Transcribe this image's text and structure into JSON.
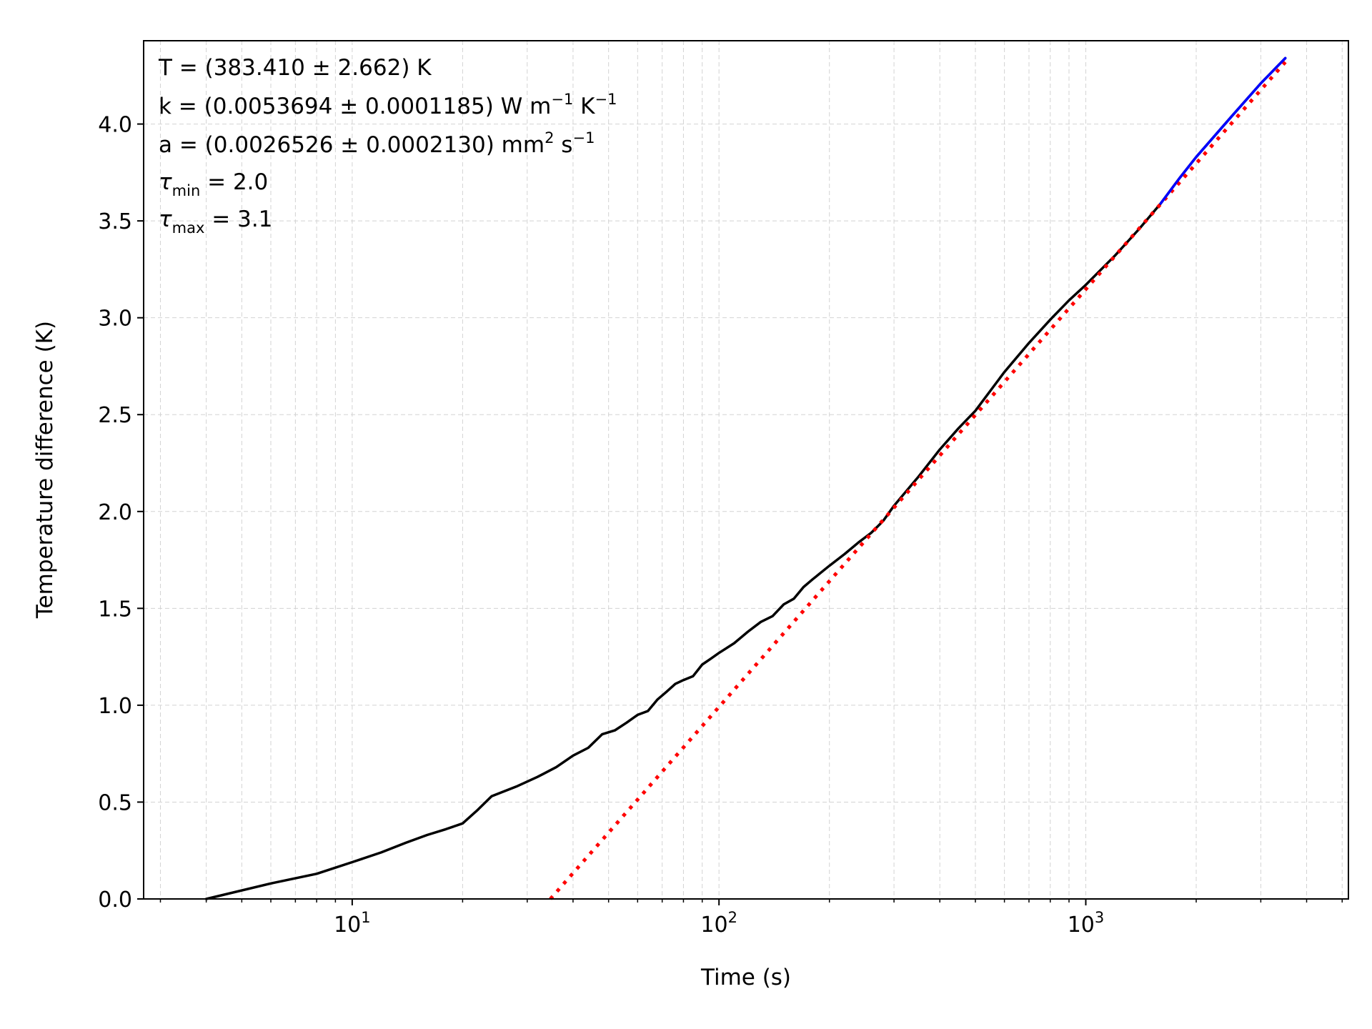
{
  "chart_data": {
    "type": "line",
    "xscale": "log",
    "xlim": [
      2.7,
      5200
    ],
    "ylim": [
      0,
      4.43
    ],
    "xlabel": "Time (s)",
    "ylabel": "Temperature difference (K)",
    "grid": true,
    "yticks": [
      0.0,
      0.5,
      1.0,
      1.5,
      2.0,
      2.5,
      3.0,
      3.5,
      4.0
    ],
    "ytick_labels": [
      "0.0",
      "0.5",
      "1.0",
      "1.5",
      "2.0",
      "2.5",
      "3.0",
      "3.5",
      "4.0"
    ],
    "xticks_major": [
      10,
      100,
      1000
    ],
    "xtick_labels": [
      {
        "base": "10",
        "exp": "1"
      },
      {
        "base": "10",
        "exp": "2"
      },
      {
        "base": "10",
        "exp": "3"
      }
    ],
    "annotations": {
      "T": {
        "prefix": "T = (383.410 ± 2.662) K"
      },
      "k": {
        "prefix": "k = (0.0053694 ± 0.0001185) W m",
        "sup1": "−1",
        "mid": " K",
        "sup2": "−1"
      },
      "a": {
        "prefix": "a = (0.0026526 ± 0.0002130) mm",
        "sup1": "2",
        "mid": " s",
        "sup2": "−1"
      },
      "tau_min": {
        "symbol": "τ",
        "sub": "min",
        "value": " = 2.0"
      },
      "tau_max": {
        "symbol": "τ",
        "sub": "max",
        "value": " = 3.1"
      }
    },
    "series": [
      {
        "style": "solid",
        "color": "#000000",
        "x": [
          4,
          6,
          8,
          10,
          12,
          14,
          16,
          18,
          20,
          22,
          24,
          28,
          32,
          36,
          40,
          44,
          48,
          52,
          56,
          60,
          64,
          68,
          72,
          76,
          80,
          85,
          90,
          95,
          100,
          110,
          120,
          130,
          140,
          150,
          160,
          170,
          180,
          200,
          220,
          240,
          260,
          280,
          300,
          350,
          400,
          450,
          500,
          600,
          700,
          800,
          900,
          1000,
          1200,
          1400,
          1600,
          1800,
          2000,
          2500,
          3000,
          3500
        ],
        "y": [
          0.0,
          0.08,
          0.13,
          0.19,
          0.24,
          0.29,
          0.33,
          0.36,
          0.39,
          0.46,
          0.53,
          0.58,
          0.63,
          0.68,
          0.74,
          0.78,
          0.85,
          0.87,
          0.91,
          0.95,
          0.97,
          1.03,
          1.07,
          1.11,
          1.13,
          1.15,
          1.21,
          1.24,
          1.27,
          1.32,
          1.38,
          1.43,
          1.46,
          1.52,
          1.55,
          1.61,
          1.65,
          1.72,
          1.78,
          1.84,
          1.89,
          1.95,
          2.03,
          2.18,
          2.32,
          2.43,
          2.52,
          2.72,
          2.87,
          2.99,
          3.09,
          3.17,
          3.32,
          3.46,
          3.59,
          3.72,
          3.83,
          4.04,
          4.21,
          4.34
        ]
      },
      {
        "style": "dotted",
        "color": "#ff0000",
        "x": [
          34.7,
          3500
        ],
        "y": [
          0.0,
          4.32
        ]
      },
      {
        "style": "solid",
        "color": "#0000ff",
        "x": [
          1600,
          1800,
          2000,
          2500,
          3000,
          3500
        ],
        "y": [
          3.59,
          3.72,
          3.83,
          4.04,
          4.21,
          4.34
        ]
      }
    ]
  }
}
